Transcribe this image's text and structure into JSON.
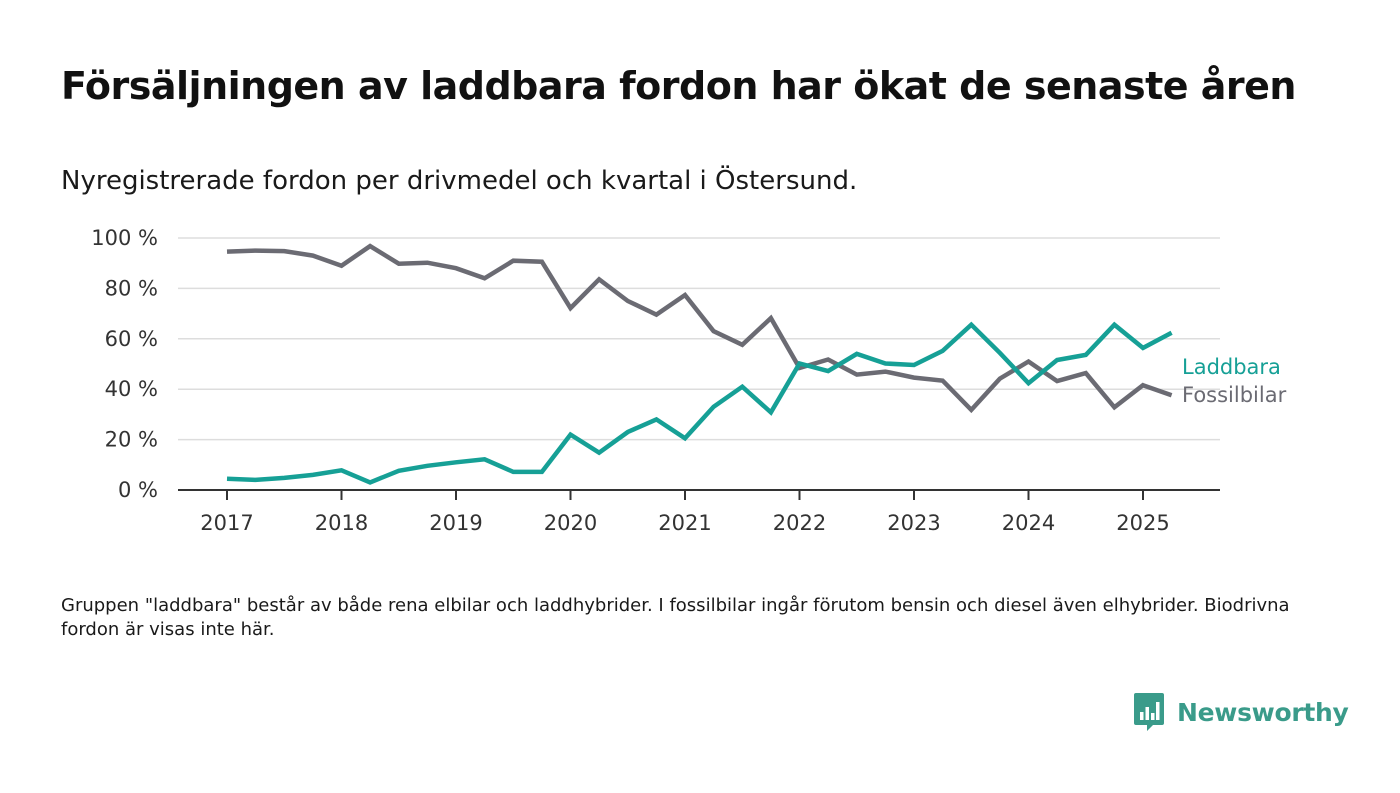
{
  "header": {
    "title": "Försäljningen av laddbara fordon har ökat de senaste åren",
    "subtitle": "Nyregistrerade fordon per drivmedel och kvartal i Östersund."
  },
  "footer": {
    "note": "Gruppen \"laddbara\" består av både rena elbilar och laddhybrider. I fossilbilar ingår förutom bensin och diesel även elhybrider. Biodrivna fordon är visas inte här.",
    "brand": "Newsworthy"
  },
  "colors": {
    "laddbara": "#16a096",
    "fossil": "#6b6b73",
    "grid": "#dddddd",
    "axis": "#333333",
    "brand": "#3a9b8a"
  },
  "chart_data": {
    "type": "line",
    "title": "",
    "xlabel": "",
    "ylabel": "",
    "x_ticks": [
      "2017",
      "2018",
      "2019",
      "2020",
      "2021",
      "2022",
      "2023",
      "2024",
      "2025"
    ],
    "y_ticks": [
      "0 %",
      "20 %",
      "40 %",
      "60 %",
      "80 %",
      "100 %"
    ],
    "ylim": [
      0,
      100
    ],
    "xlim": [
      "2016-Q3",
      "2025-Q4"
    ],
    "grid": true,
    "legend": "end-of-line labels (right)",
    "x": [
      "2017-Q1",
      "2017-Q2",
      "2017-Q3",
      "2017-Q4",
      "2018-Q1",
      "2018-Q2",
      "2018-Q3",
      "2018-Q4",
      "2019-Q1",
      "2019-Q2",
      "2019-Q3",
      "2019-Q4",
      "2020-Q1",
      "2020-Q2",
      "2020-Q3",
      "2020-Q4",
      "2021-Q1",
      "2021-Q2",
      "2021-Q3",
      "2021-Q4",
      "2022-Q1",
      "2022-Q2",
      "2022-Q3",
      "2022-Q4",
      "2023-Q1",
      "2023-Q2",
      "2023-Q3",
      "2023-Q4",
      "2024-Q1",
      "2024-Q2",
      "2024-Q3",
      "2024-Q4",
      "2025-Q1",
      "2025-Q2"
    ],
    "series": [
      {
        "name": "Laddbara",
        "color": "#16a096",
        "values": [
          4.5,
          4.0,
          4.8,
          6.0,
          7.8,
          3.0,
          7.6,
          9.6,
          11.0,
          12.2,
          7.2,
          7.2,
          22.0,
          14.8,
          23.0,
          28.0,
          20.5,
          33.0,
          41.0,
          30.8,
          50.2,
          47.2,
          54.0,
          50.2,
          49.6,
          55.2,
          65.6,
          54.4,
          42.4,
          51.6,
          53.6,
          65.6,
          56.4,
          62.4
        ]
      },
      {
        "name": "Fossilbilar",
        "color": "#6b6b73",
        "values": [
          94.6,
          95.0,
          94.8,
          93.0,
          89.0,
          96.8,
          89.8,
          90.2,
          88.0,
          84.0,
          91.0,
          90.6,
          72.2,
          83.6,
          75.0,
          69.6,
          77.4,
          63.0,
          57.6,
          68.2,
          48.4,
          51.8,
          45.8,
          47.0,
          44.6,
          43.4,
          31.8,
          44.2,
          51.0,
          43.2,
          46.4,
          32.8,
          41.6,
          37.6
        ]
      }
    ]
  }
}
